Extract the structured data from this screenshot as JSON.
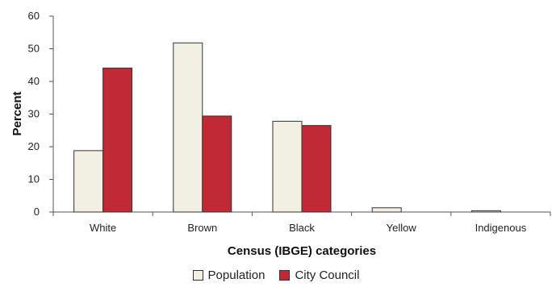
{
  "chart_data": {
    "type": "bar",
    "categories": [
      "White",
      "Brown",
      "Black",
      "Yellow",
      "Indigenous"
    ],
    "series": [
      {
        "name": "Population",
        "values": [
          18.8,
          51.8,
          27.8,
          1.3,
          0.4
        ],
        "color": "#f2efe3"
      },
      {
        "name": "City Council",
        "values": [
          44.1,
          29.4,
          26.5,
          0,
          0
        ],
        "color": "#c12a34"
      }
    ],
    "title": "",
    "xlabel": "Census (IBGE) categories",
    "ylabel": "Percent",
    "ylim": [
      0,
      60
    ],
    "yticks": [
      0,
      10,
      20,
      30,
      40,
      50,
      60
    ],
    "grid": false,
    "legend_position": "bottom"
  }
}
